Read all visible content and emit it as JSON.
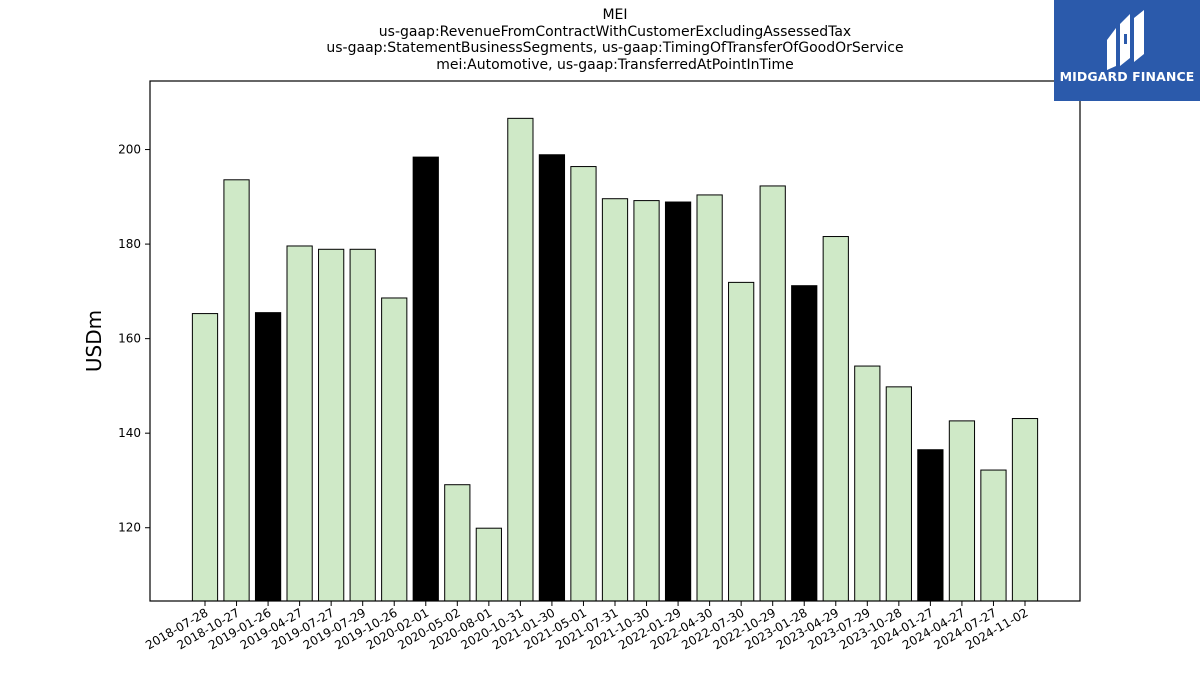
{
  "chart_data": {
    "type": "bar",
    "title_lines": [
      "MEI",
      "us-gaap:RevenueFromContractWithCustomerExcludingAssessedTax",
      "us-gaap:StatementBusinessSegments, us-gaap:TimingOfTransferOfGoodOrService",
      "mei:Automotive, us-gaap:TransferredAtPointInTime"
    ],
    "ylabel": "USDm",
    "xlabel": "",
    "ylim": [
      104.5,
      214.5
    ],
    "yticks": [
      120,
      140,
      160,
      180,
      200
    ],
    "grid": false,
    "categories": [
      "2018-07-28",
      "2018-10-27",
      "2019-01-26",
      "2019-04-27",
      "2019-07-27",
      "2019-07-29",
      "2019-10-26",
      "2020-02-01",
      "2020-05-02",
      "2020-08-01",
      "2020-10-31",
      "2021-01-30",
      "2021-05-01",
      "2021-07-31",
      "2021-10-30",
      "2022-01-29",
      "2022-04-30",
      "2022-07-30",
      "2022-10-29",
      "2023-01-28",
      "2023-04-29",
      "2023-07-29",
      "2023-10-28",
      "2024-01-27",
      "2024-04-27",
      "2024-07-27",
      "2024-11-02"
    ],
    "values": [
      165.3,
      193.6,
      165.5,
      179.6,
      178.9,
      178.9,
      168.6,
      198.4,
      129.1,
      119.9,
      206.6,
      198.9,
      196.4,
      189.6,
      189.2,
      188.9,
      190.4,
      171.9,
      192.3,
      171.2,
      181.6,
      154.2,
      149.8,
      136.5,
      142.6,
      132.2,
      143.1
    ],
    "highlighted": [
      false,
      false,
      true,
      false,
      false,
      false,
      false,
      true,
      false,
      false,
      false,
      true,
      false,
      false,
      false,
      true,
      false,
      false,
      false,
      true,
      false,
      false,
      false,
      true,
      false,
      false,
      false
    ],
    "colors": {
      "normal": "#cfe9c7",
      "highlight": "#000000",
      "edge": "#000000"
    }
  },
  "logo": {
    "text": "MIDGARD FINANCE",
    "background": "#2b5aab"
  }
}
